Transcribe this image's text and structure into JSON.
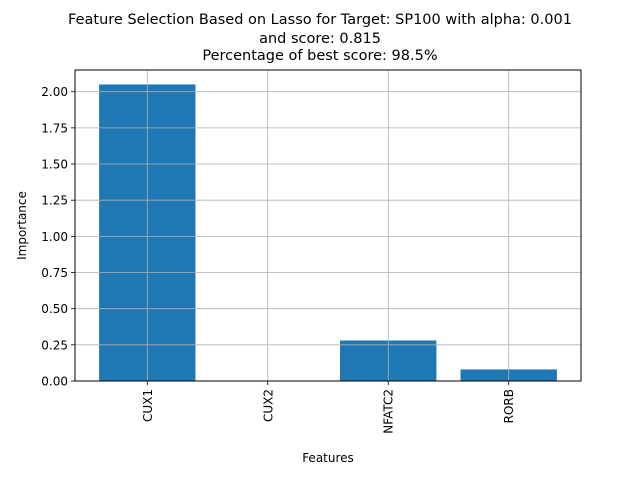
{
  "chart_data": {
    "type": "bar",
    "title": "Feature Selection Based on Lasso for Target: SP100 with alpha: 0.001\nand score: 0.815\n Percentage of best score: 98.5%",
    "title_lines": [
      "Feature Selection Based on Lasso for Target: SP100 with alpha: 0.001",
      "and score: 0.815",
      "Percentage of best score: 98.5%"
    ],
    "xlabel": "Features",
    "ylabel": "Importance",
    "categories": [
      "CUX1",
      "CUX2",
      "NFATC2",
      "RORB"
    ],
    "values": [
      2.05,
      0.0,
      0.28,
      0.08
    ],
    "ylim": [
      0,
      2.15
    ],
    "yticks": [
      0.0,
      0.25,
      0.5,
      0.75,
      1.0,
      1.25,
      1.5,
      1.75,
      2.0
    ],
    "ytick_labels": [
      "0.00",
      "0.25",
      "0.50",
      "0.75",
      "1.00",
      "1.25",
      "1.50",
      "1.75",
      "2.00"
    ],
    "grid": true,
    "bar_color": "#1f77b4",
    "grid_color": "#b0b0b0",
    "xtick_rotation": "vertical"
  }
}
